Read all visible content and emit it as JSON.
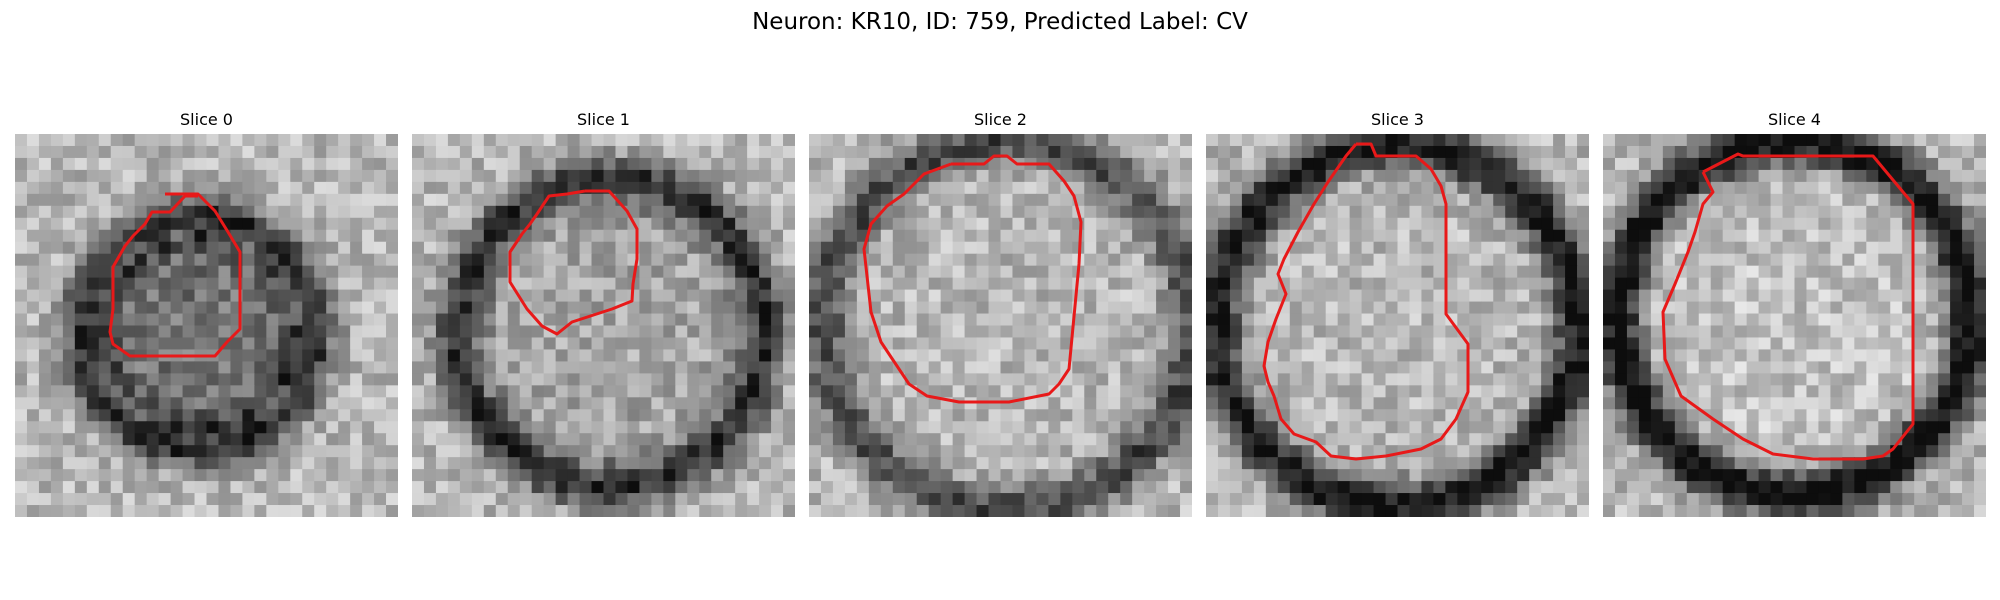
{
  "figure": {
    "title": "Neuron: KR10, ID: 759, Predicted Label: CV"
  },
  "colors": {
    "contour": "#e81919",
    "background": "#ffffff"
  },
  "slices": [
    {
      "label": "Slice 0"
    },
    {
      "label": "Slice 1"
    },
    {
      "label": "Slice 2"
    },
    {
      "label": "Slice 3"
    },
    {
      "label": "Slice 4"
    }
  ]
}
